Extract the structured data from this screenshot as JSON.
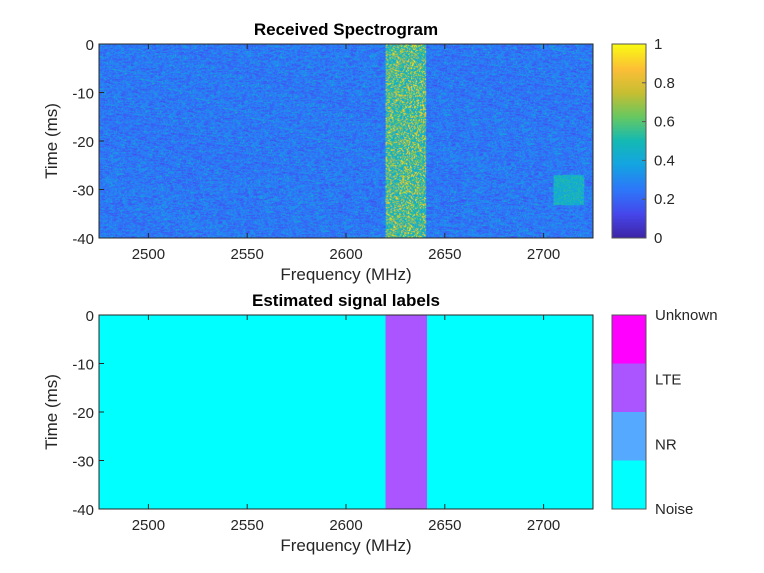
{
  "chart_data": [
    {
      "type": "heatmap",
      "title": "Received Spectrogram",
      "xlabel": "Frequency (MHz)",
      "ylabel": "Time (ms)",
      "xlim": [
        2475,
        2725
      ],
      "ylim": [
        -40,
        0
      ],
      "xticks": [
        2500,
        2550,
        2600,
        2650,
        2700
      ],
      "yticks": [
        0,
        -10,
        -20,
        -30,
        -40
      ],
      "colormap": "parula",
      "colorbar": {
        "range": [
          0,
          1
        ],
        "ticks": [
          0,
          0.2,
          0.4,
          0.6,
          0.8,
          1
        ]
      },
      "background_level": [
        0.1,
        0.4
      ],
      "features": [
        {
          "kind": "signal-band",
          "freq_range": [
            2620,
            2640
          ],
          "time_range": [
            -40,
            0
          ],
          "level": [
            0.4,
            1
          ]
        },
        {
          "kind": "weak-burst",
          "freq_range": [
            2705,
            2720
          ],
          "time_range": [
            -33,
            -27
          ],
          "level": [
            0.35,
            0.55
          ]
        }
      ]
    },
    {
      "type": "heatmap",
      "title": "Estimated signal labels",
      "xlabel": "Frequency (MHz)",
      "ylabel": "Time (ms)",
      "xlim": [
        2475,
        2725
      ],
      "ylim": [
        -40,
        0
      ],
      "xticks": [
        2500,
        2550,
        2600,
        2650,
        2700
      ],
      "yticks": [
        0,
        -10,
        -20,
        -30,
        -40
      ],
      "classes": [
        {
          "name": "Noise",
          "color": "#00ffff"
        },
        {
          "name": "NR",
          "color": "#55aaff"
        },
        {
          "name": "LTE",
          "color": "#aa55ff"
        },
        {
          "name": "Unknown",
          "color": "#ff00ff"
        }
      ],
      "regions": [
        {
          "label": "Noise",
          "freq_range": [
            2475,
            2725
          ],
          "time_range": [
            -40,
            0
          ]
        },
        {
          "label": "LTE",
          "freq_range": [
            2620,
            2641
          ],
          "time_range": [
            -40,
            0
          ]
        }
      ]
    }
  ]
}
